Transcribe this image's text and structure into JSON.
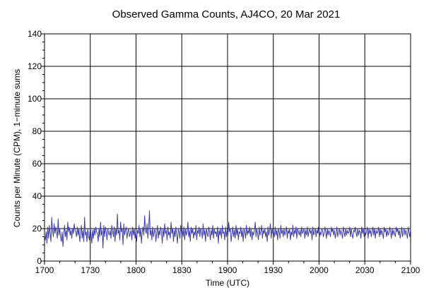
{
  "chart_data": {
    "type": "line",
    "title": "Observed Gamma Counts, AJ4CO, 20 Mar 2021",
    "xlabel": "Time (UTC)",
    "ylabel": "Counts per Minute (CPM), 1−minute sums",
    "x_tick_labels": [
      "1700",
      "1730",
      "1800",
      "1830",
      "1900",
      "1930",
      "2000",
      "2030",
      "2100"
    ],
    "y_tick_labels": [
      "0",
      "20",
      "40",
      "60",
      "80",
      "100",
      "120",
      "140"
    ],
    "ylim": [
      0,
      140
    ],
    "xlim_minutes": [
      0,
      240
    ],
    "grid": true,
    "line_color": "#3c3caa",
    "series": [
      {
        "values": [
          16,
          13,
          18,
          11,
          21,
          14,
          22,
          17,
          12,
          27,
          19,
          15,
          23,
          17,
          21,
          18,
          14,
          26,
          16,
          20,
          15,
          12,
          18,
          9,
          17,
          22,
          15,
          19,
          13,
          24,
          18,
          21,
          16,
          19,
          14,
          20,
          17,
          23,
          19,
          18,
          15,
          21,
          16,
          20,
          12,
          17,
          22,
          14,
          19,
          12,
          27,
          16,
          18,
          12,
          20,
          15,
          13,
          21,
          17,
          11,
          19,
          14,
          20,
          16,
          21,
          18,
          17,
          12,
          20,
          15,
          24,
          16,
          19,
          8,
          22,
          15,
          21,
          18,
          13,
          20,
          17,
          16,
          19,
          14,
          22,
          18,
          15,
          21,
          12,
          20,
          16,
          29,
          17,
          19,
          13,
          24,
          18,
          20,
          10,
          23,
          16,
          19,
          21,
          14,
          18,
          20,
          15,
          17,
          19,
          13,
          21,
          16,
          20,
          14,
          18,
          12,
          19,
          17,
          22,
          15,
          20,
          11,
          18,
          21,
          16,
          28,
          19,
          17,
          23,
          14,
          20,
          31,
          16,
          19,
          13,
          21,
          15,
          18,
          20,
          12,
          17,
          22,
          14,
          19,
          16,
          21,
          18,
          11,
          20,
          15,
          23,
          17,
          19,
          13,
          21,
          16,
          18,
          14,
          24,
          17,
          20,
          12,
          19,
          15,
          21,
          16,
          11,
          20,
          18,
          14,
          22,
          17,
          19,
          15,
          21,
          13,
          20,
          16,
          18,
          24,
          15,
          19,
          12,
          21,
          17,
          20,
          14,
          18,
          16,
          22,
          13,
          19,
          17,
          21,
          15,
          20,
          18,
          14,
          23,
          16,
          19,
          12,
          20,
          17,
          15,
          21,
          18,
          13,
          19,
          16,
          22,
          14,
          20,
          17,
          18,
          15,
          21,
          11,
          19,
          16,
          20,
          14,
          22,
          17,
          18,
          13,
          21,
          15,
          19,
          16,
          24,
          18,
          20,
          12,
          17,
          21,
          15,
          19,
          14,
          22,
          16,
          20,
          13,
          18,
          17,
          21,
          15,
          19,
          12,
          20,
          18,
          14,
          22,
          16,
          19,
          17,
          21,
          15,
          20,
          13,
          18,
          16,
          19,
          24,
          15,
          20,
          17,
          13,
          21,
          16,
          18,
          22,
          14,
          19,
          17,
          20,
          15,
          18,
          12,
          21,
          16,
          19,
          23,
          14,
          20,
          17,
          18,
          15,
          21,
          16,
          19,
          13,
          20,
          18,
          14,
          22,
          17,
          19,
          15,
          20,
          16,
          18,
          21,
          14,
          19,
          17,
          20,
          13,
          18,
          16,
          22,
          15,
          19,
          17,
          21,
          14,
          20,
          18,
          16,
          19,
          15,
          21,
          17,
          18,
          20,
          14,
          19,
          16,
          21,
          15,
          18,
          20,
          17,
          19,
          13,
          21,
          16,
          18,
          20,
          15,
          19,
          17,
          21,
          14,
          18,
          16,
          20,
          19,
          15,
          17,
          21,
          18,
          14,
          20,
          16,
          19,
          17,
          15,
          21,
          18,
          20,
          16,
          19,
          14,
          17,
          21,
          15,
          18,
          20,
          16,
          19,
          17,
          14,
          21,
          18,
          15,
          20,
          16,
          19,
          17,
          18,
          21,
          15,
          20,
          16,
          14,
          19,
          18,
          21,
          17,
          15,
          20,
          16,
          19,
          18,
          14,
          21,
          17,
          20,
          15,
          19,
          16,
          18,
          21,
          14,
          20,
          17,
          19,
          15,
          18,
          21,
          16,
          20,
          14,
          19,
          17,
          18,
          21,
          15,
          20,
          16,
          19,
          17,
          14,
          21,
          18,
          20,
          15,
          19,
          16,
          17,
          21,
          18,
          14,
          20,
          16,
          19,
          17,
          15,
          21,
          18,
          20,
          16,
          19,
          14,
          17,
          21,
          15,
          18,
          20,
          16,
          19,
          17,
          14,
          21,
          18,
          15,
          20
        ]
      }
    ]
  }
}
